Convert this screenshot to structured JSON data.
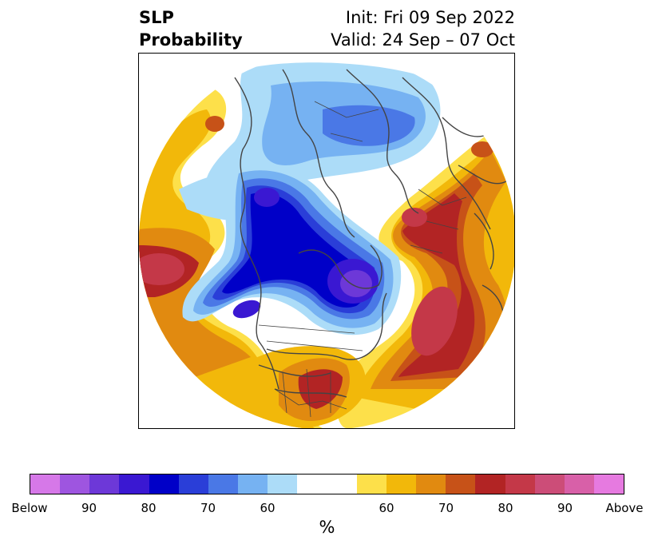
{
  "title": {
    "left_line1": "SLP",
    "left_line2": "Probability",
    "right_line1": "Init: Fri 09 Sep 2022",
    "right_line2": "Valid: 24 Sep – 07 Oct"
  },
  "colorbar": {
    "units": "%",
    "colors": [
      "#d678e8",
      "#9e55e0",
      "#6d38d8",
      "#3a18d2",
      "#0000c8",
      "#2a3ed8",
      "#4a78e6",
      "#76b2f2",
      "#acdcf8",
      "#ffffff",
      "#ffffff",
      "#fde04a",
      "#f2b80a",
      "#e18a10",
      "#c75218",
      "#b22424",
      "#c43848",
      "#cc4d78",
      "#d860a8",
      "#e67ae0"
    ],
    "tick_labels": [
      "Below",
      "90",
      "80",
      "70",
      "60",
      "60",
      "70",
      "80",
      "90",
      "Above"
    ]
  },
  "map": {
    "colors": {
      "deep_red": "#b22424",
      "pink_red": "#c43848",
      "red_orange": "#c75218",
      "orange": "#e18a10",
      "gold": "#f2b80a",
      "yellow": "#fde04a",
      "light_blue": "#acdcf8",
      "sky_blue": "#76b2f2",
      "mid_blue": "#4a78e6",
      "blue": "#2a3ed8",
      "navy": "#0000c8",
      "indigo": "#3a18d2",
      "violet": "#6d38d8",
      "coastline": "#444444"
    }
  }
}
